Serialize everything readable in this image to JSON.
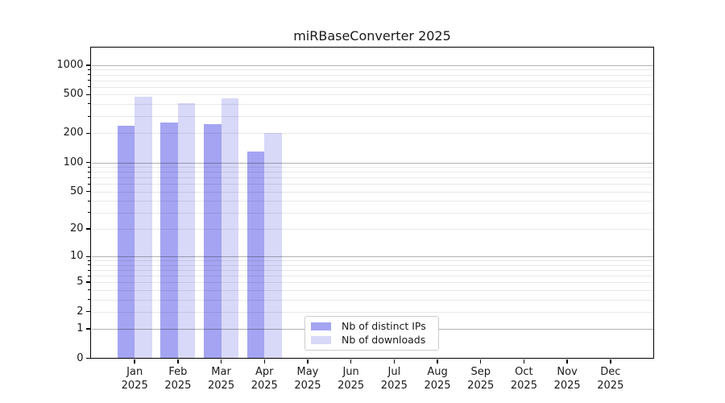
{
  "title": "miRBaseConverter 2025",
  "chart_data": {
    "type": "bar",
    "title": "miRBaseConverter 2025",
    "scale": "log10(value+1)",
    "categories": [
      "Jan",
      "Feb",
      "Mar",
      "Apr",
      "May",
      "Jun",
      "Jul",
      "Aug",
      "Sep",
      "Oct",
      "Nov",
      "Dec"
    ],
    "year": "2025",
    "series": [
      {
        "name": "Nb of distinct IPs",
        "color": "#a4a4f2",
        "values": [
          240,
          258,
          250,
          130,
          null,
          null,
          null,
          null,
          null,
          null,
          null,
          null
        ]
      },
      {
        "name": "Nb of downloads",
        "color": "#d8d8f8",
        "values": [
          475,
          410,
          460,
          200,
          null,
          null,
          null,
          null,
          null,
          null,
          null,
          null
        ]
      }
    ],
    "y_ticks": [
      0,
      1,
      2,
      5,
      10,
      20,
      50,
      100,
      200,
      500,
      1000
    ],
    "ylim": [
      0,
      1500
    ],
    "xlabel": "",
    "ylabel": "",
    "grid": true,
    "legend_position": "lower-center-inside",
    "colors": {
      "major_grid": "rgba(0,0,0,0.30)",
      "minor_grid": "rgba(0,0,0,0.085)",
      "spine": "#000000",
      "text": "#1a1a1a"
    }
  }
}
